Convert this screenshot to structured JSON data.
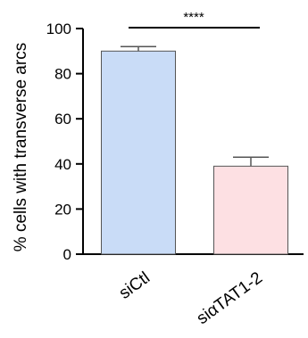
{
  "chart_data": {
    "type": "bar",
    "categories": [
      "siCtl",
      "siαTAT1-2"
    ],
    "values": [
      90,
      39
    ],
    "errors": [
      2,
      4
    ],
    "colors": [
      "#c9dcf7",
      "#fde0e3"
    ],
    "ylabel": "% cells with transverse arcs",
    "ylim": [
      0,
      100
    ],
    "yticks": [
      "0",
      "20",
      "40",
      "60",
      "80",
      "100"
    ],
    "significance": "****",
    "grid": false
  }
}
